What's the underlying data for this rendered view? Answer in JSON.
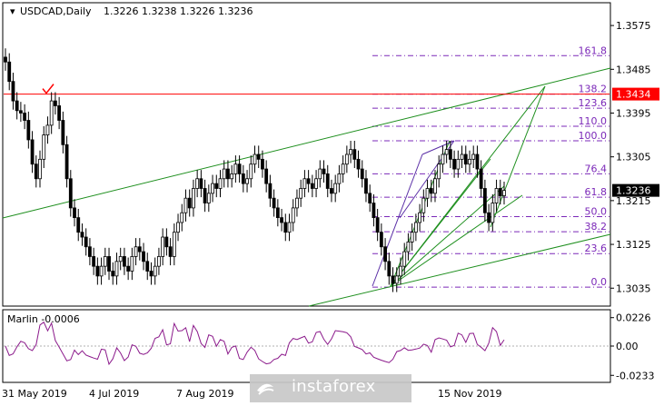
{
  "header": {
    "symbol": "USDCAD,Daily",
    "ohlc": "1.3226 1.3238 1.3226 1.3236"
  },
  "price_axis": {
    "ticks": [
      "1.3575",
      "1.3485",
      "1.3395",
      "1.3305",
      "1.3215",
      "1.3125",
      "1.3035"
    ],
    "tick_values": [
      1.3575,
      1.3485,
      1.3395,
      1.3305,
      1.3215,
      1.3125,
      1.3035
    ]
  },
  "markers": {
    "resistance_price": "1.3434",
    "current_price": "1.3236",
    "resistance_color": "#ff0000",
    "current_color": "#000000"
  },
  "fibonacci": {
    "color": "#7b28b8",
    "levels": [
      {
        "label": "161.8",
        "price": 1.3513
      },
      {
        "label": "138.2",
        "price": 1.3434
      },
      {
        "label": "123.6",
        "price": 1.3405
      },
      {
        "label": "110.0",
        "price": 1.3368
      },
      {
        "label": "100.0",
        "price": 1.3338
      },
      {
        "label": "76.4",
        "price": 1.327
      },
      {
        "label": "61.8",
        "price": 1.3222
      },
      {
        "label": "50.0",
        "price": 1.3182
      },
      {
        "label": "38.2",
        "price": 1.3151
      },
      {
        "label": "23.6",
        "price": 1.3106
      },
      {
        "label": "0.0",
        "price": 1.3037
      }
    ]
  },
  "indicator": {
    "label": "Marlin -0.0006",
    "ticks": [
      "0.0226",
      "0.00",
      "-0.0233"
    ],
    "tick_values": [
      0.0226,
      0.0,
      -0.0233
    ]
  },
  "date_axis": {
    "labels": [
      "31 May 2019",
      "4 Jul 2019",
      "7 Aug 2019",
      "15 Nov 2019"
    ]
  },
  "watermark": {
    "text": "instaforex"
  },
  "chart_data": {
    "type": "candlestick",
    "series_close": [
      1.35,
      1.346,
      1.342,
      1.34,
      1.3395,
      1.338,
      1.334,
      1.329,
      1.326,
      1.33,
      1.335,
      1.337,
      1.342,
      1.341,
      1.338,
      1.333,
      1.326,
      1.32,
      1.318,
      1.315,
      1.314,
      1.312,
      1.31,
      1.308,
      1.306,
      1.308,
      1.31,
      1.307,
      1.306,
      1.309,
      1.31,
      1.308,
      1.307,
      1.31,
      1.312,
      1.311,
      1.309,
      1.307,
      1.306,
      1.308,
      1.31,
      1.314,
      1.312,
      1.31,
      1.315,
      1.317,
      1.319,
      1.322,
      1.32,
      1.324,
      1.326,
      1.324,
      1.321,
      1.323,
      1.325,
      1.324,
      1.326,
      1.328,
      1.326,
      1.327,
      1.329,
      1.327,
      1.325,
      1.326,
      1.329,
      1.331,
      1.33,
      1.328,
      1.325,
      1.322,
      1.32,
      1.318,
      1.317,
      1.315,
      1.317,
      1.32,
      1.322,
      1.324,
      1.326,
      1.325,
      1.324,
      1.326,
      1.328,
      1.327,
      1.324,
      1.323,
      1.325,
      1.327,
      1.329,
      1.331,
      1.332,
      1.33,
      1.328,
      1.326,
      1.323,
      1.321,
      1.318,
      1.315,
      1.312,
      1.309,
      1.306,
      1.3045,
      1.306,
      1.308,
      1.311,
      1.313,
      1.315,
      1.317,
      1.319,
      1.322,
      1.324,
      1.323,
      1.326,
      1.329,
      1.331,
      1.332,
      1.33,
      1.328,
      1.33,
      1.331,
      1.329,
      1.33,
      1.331,
      1.328,
      1.324,
      1.319,
      1.317,
      1.321,
      1.324,
      1.3225,
      1.3236
    ],
    "y_range": [
      1.3,
      1.362
    ],
    "indicator_range": [
      -0.026,
      0.026
    ]
  }
}
